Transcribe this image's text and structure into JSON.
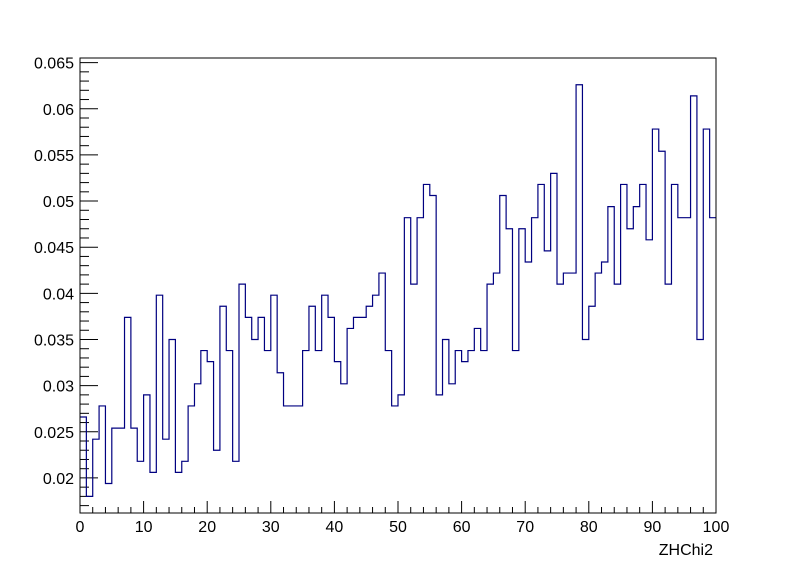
{
  "chart_data": {
    "type": "histogram",
    "title": "",
    "xlabel": "ZHChi2",
    "ylabel": "",
    "xlim": [
      0,
      100
    ],
    "ylim": [
      0.0162,
      0.0655
    ],
    "grid": false,
    "legend": "none",
    "x_ticks": [
      0,
      10,
      20,
      30,
      40,
      50,
      60,
      70,
      80,
      90,
      100
    ],
    "x_tick_labels": [
      "0",
      "10",
      "20",
      "30",
      "40",
      "50",
      "60",
      "70",
      "80",
      "90",
      "100"
    ],
    "y_ticks": [
      0.02,
      0.025,
      0.03,
      0.035,
      0.04,
      0.045,
      0.05,
      0.055,
      0.06,
      0.065
    ],
    "y_tick_labels": [
      "0.02",
      "0.025",
      "0.03",
      "0.035",
      "0.04",
      "0.045",
      "0.05",
      "0.055",
      "0.06",
      "0.065"
    ],
    "line_color": "#000080",
    "frame_color": "#000000",
    "bin_edges_start": 0,
    "bin_width": 1,
    "values": [
      0.0266,
      0.018,
      0.0242,
      0.0278,
      0.0194,
      0.0254,
      0.0254,
      0.0374,
      0.0254,
      0.0218,
      0.029,
      0.0206,
      0.0398,
      0.0242,
      0.035,
      0.0206,
      0.0218,
      0.0278,
      0.0302,
      0.0338,
      0.0326,
      0.023,
      0.0386,
      0.0338,
      0.0218,
      0.041,
      0.0374,
      0.035,
      0.0374,
      0.0338,
      0.0398,
      0.0314,
      0.0278,
      0.0278,
      0.0278,
      0.0338,
      0.0386,
      0.0338,
      0.0398,
      0.0374,
      0.0326,
      0.0302,
      0.0362,
      0.0374,
      0.0374,
      0.0386,
      0.0398,
      0.0422,
      0.0338,
      0.0278,
      0.029,
      0.0482,
      0.041,
      0.0482,
      0.0518,
      0.0506,
      0.029,
      0.035,
      0.0302,
      0.0338,
      0.0326,
      0.0338,
      0.0362,
      0.0338,
      0.041,
      0.0422,
      0.0506,
      0.047,
      0.0338,
      0.047,
      0.0434,
      0.0482,
      0.0518,
      0.0446,
      0.053,
      0.041,
      0.0422,
      0.0422,
      0.0626,
      0.035,
      0.0386,
      0.0422,
      0.0434,
      0.0494,
      0.041,
      0.0518,
      0.047,
      0.0494,
      0.0518,
      0.0458,
      0.0578,
      0.0554,
      0.041,
      0.0518,
      0.0482,
      0.0482,
      0.0614,
      0.035,
      0.0578,
      0.0482
    ]
  }
}
